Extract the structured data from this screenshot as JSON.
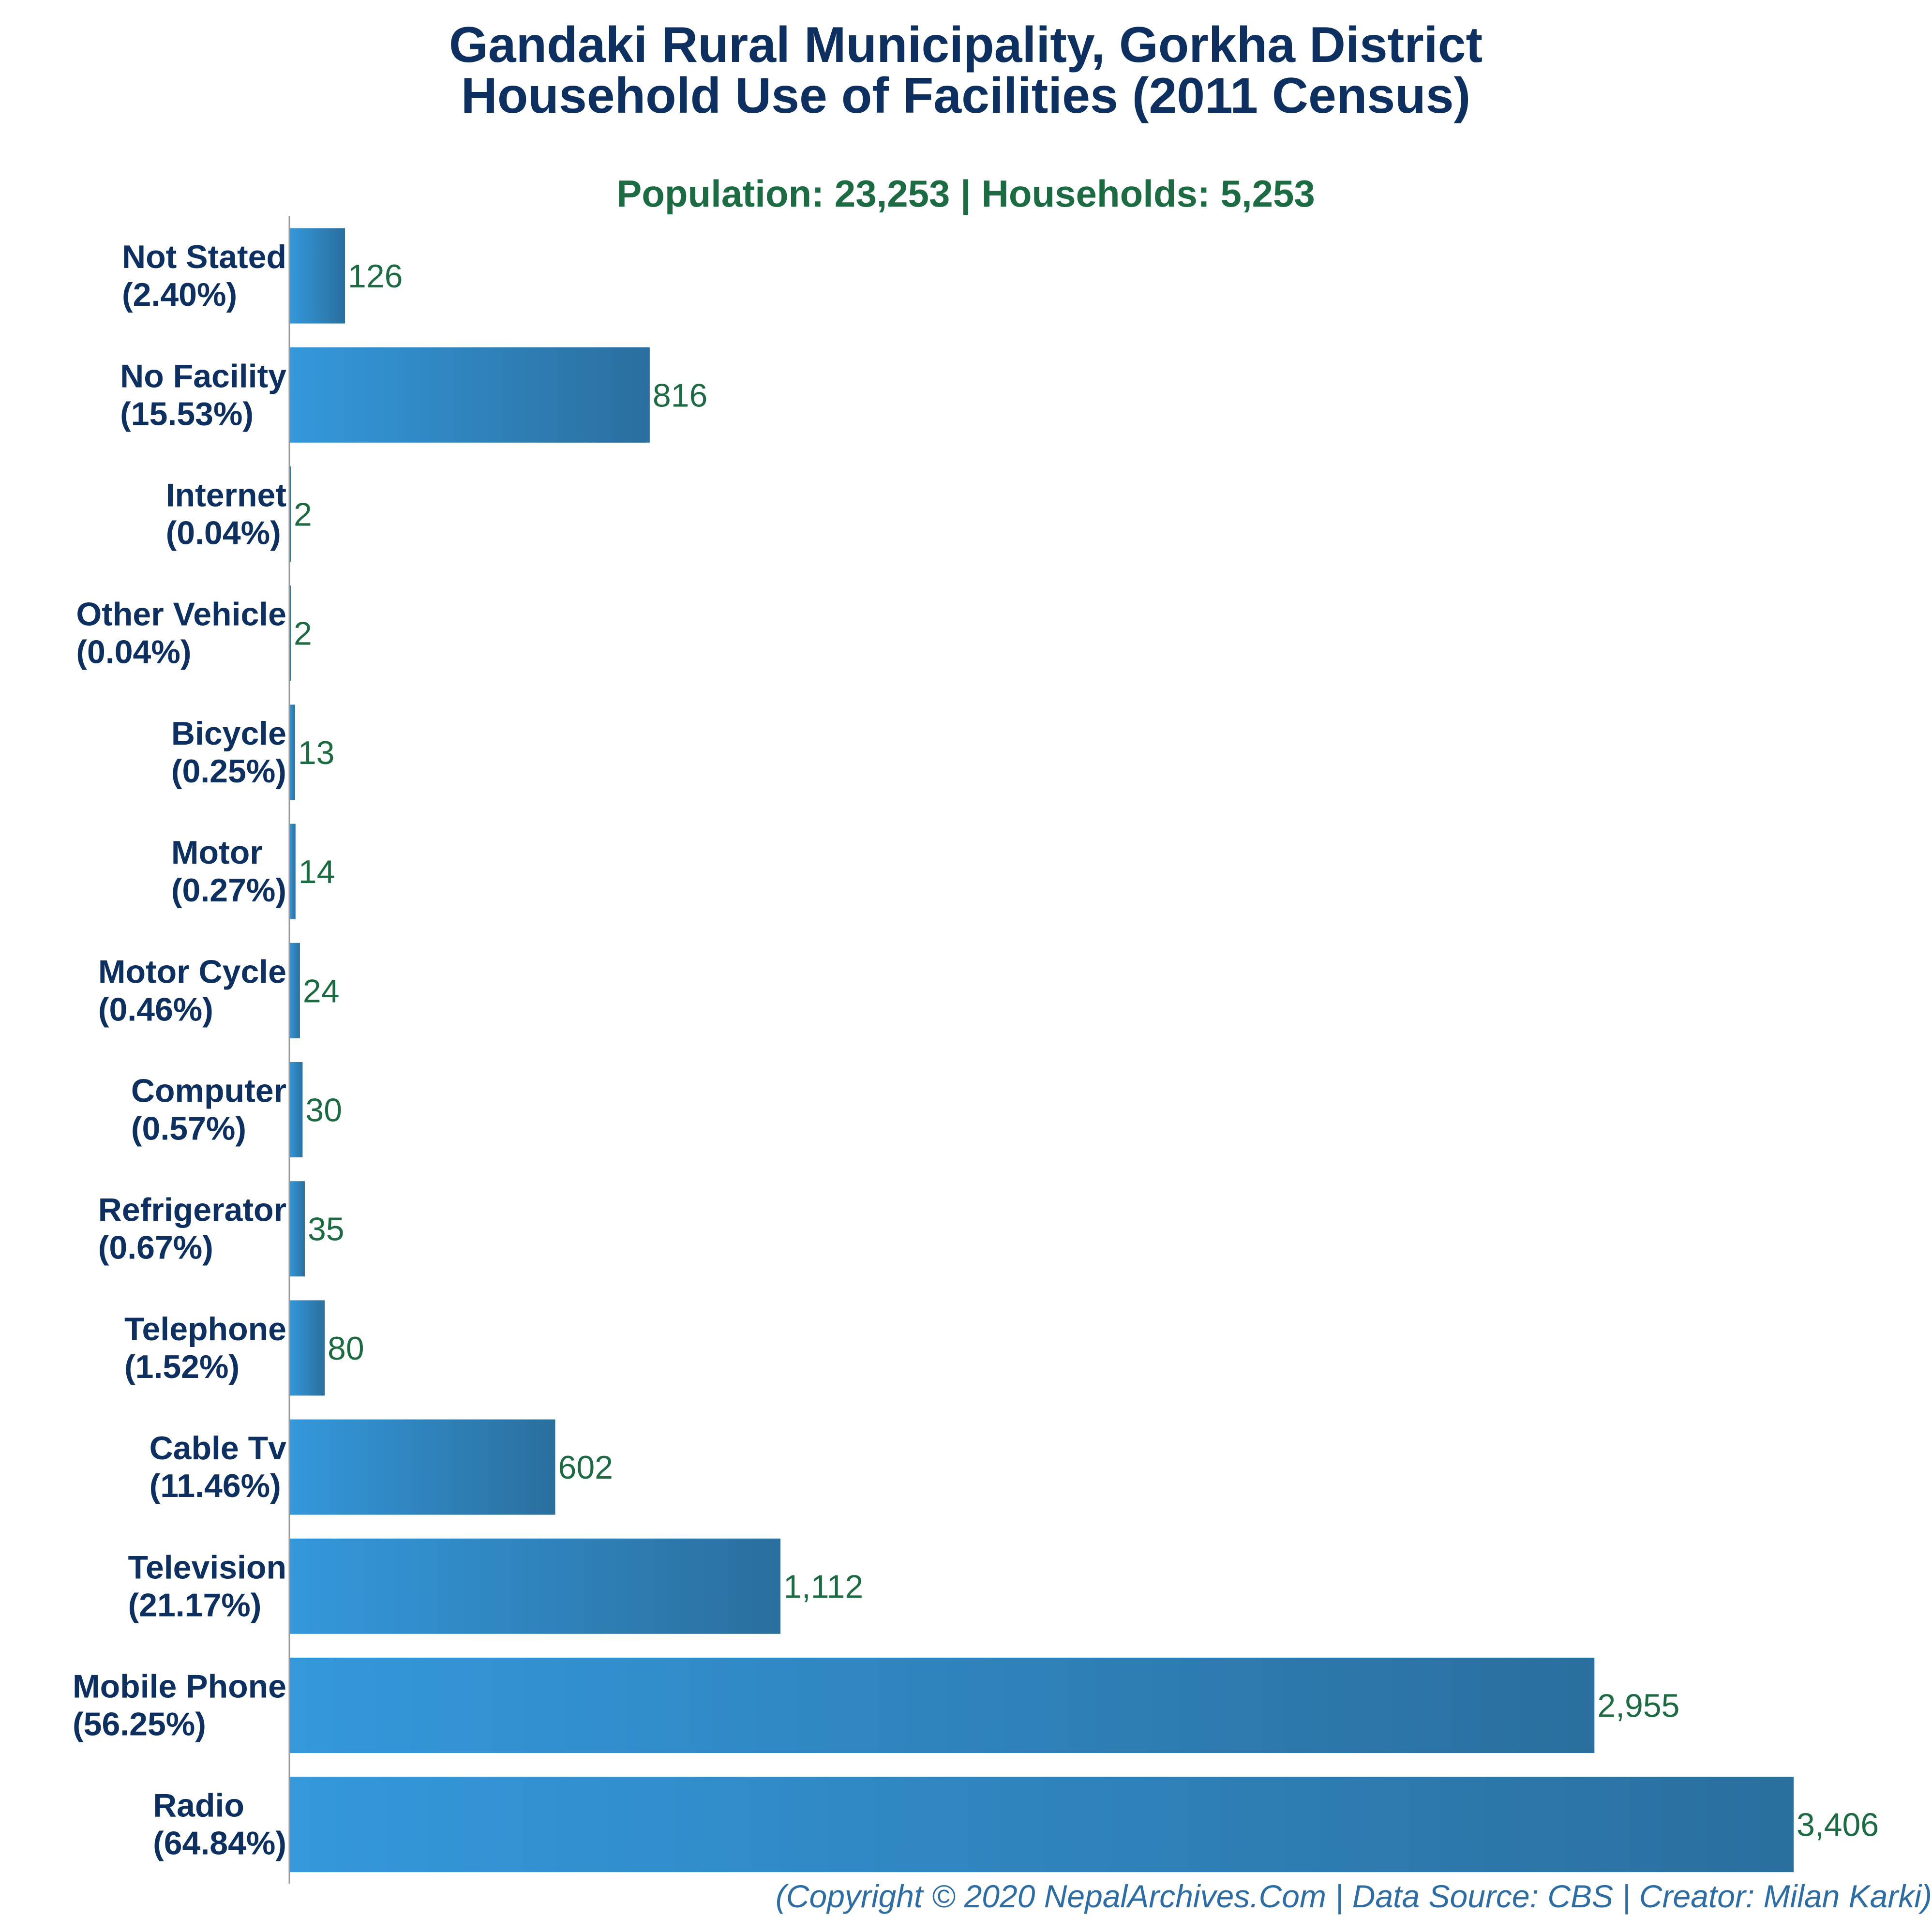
{
  "colors": {
    "title": "#0d3060",
    "subtitle": "#1d6b43",
    "category_label": "#0d3060",
    "value_label": "#1d6b43",
    "footer": "#2e6da4",
    "bar_gradient_start": "#3498db",
    "bar_gradient_end": "#2a6f9e",
    "axis": "#999999"
  },
  "chart_data": {
    "type": "bar",
    "orientation": "horizontal",
    "title_lines": [
      "Gandaki Rural Municipality, Gorkha District",
      "Household Use of Facilities (2011 Census)"
    ],
    "subtitle": "Population: 23,253 | Households: 5,253",
    "footer": "(Copyright © 2020 NepalArchives.Com | Data Source: CBS | Creator: Milan Karki)",
    "xlabel": "",
    "ylabel": "",
    "xlim": [
      0,
      3406
    ],
    "grid": false,
    "legend": false,
    "categories": [
      "Not Stated",
      "No Facility",
      "Internet",
      "Other Vehicle",
      "Bicycle",
      "Motor",
      "Motor Cycle",
      "Computer",
      "Refrigerator",
      "Telephone",
      "Cable Tv",
      "Television",
      "Mobile Phone",
      "Radio"
    ],
    "percent_labels": [
      "(2.40%)",
      "(15.53%)",
      "(0.04%)",
      "(0.04%)",
      "(0.25%)",
      "(0.27%)",
      "(0.46%)",
      "(0.57%)",
      "(0.67%)",
      "(1.52%)",
      "(11.46%)",
      "(21.17%)",
      "(56.25%)",
      "(64.84%)"
    ],
    "values": [
      126,
      816,
      2,
      2,
      13,
      14,
      24,
      30,
      35,
      80,
      602,
      1112,
      2955,
      3406
    ],
    "value_labels": [
      "126",
      "816",
      "2",
      "2",
      "13",
      "14",
      "24",
      "30",
      "35",
      "80",
      "602",
      "1,112",
      "2,955",
      "3,406"
    ]
  }
}
